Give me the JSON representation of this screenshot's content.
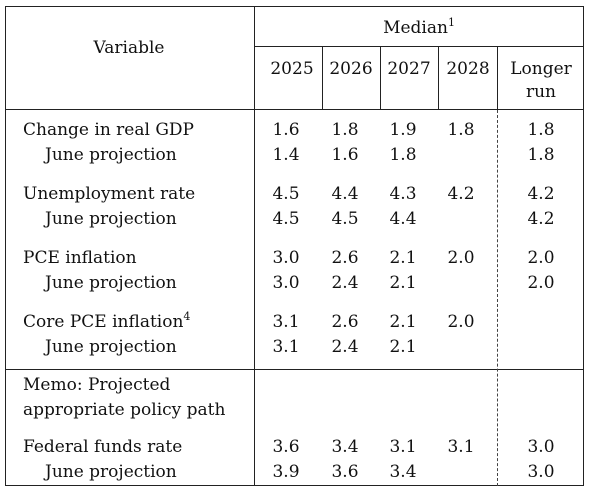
{
  "header": {
    "variable_label": "Variable",
    "median_label": "Median",
    "median_note": "1",
    "years": [
      "2025",
      "2026",
      "2027",
      "2028"
    ],
    "longer_run": [
      "Longer",
      "run"
    ]
  },
  "rows": [
    {
      "label": "Change in real GDP",
      "note": "",
      "values": [
        "1.6",
        "1.8",
        "1.9",
        "1.8",
        "1.8"
      ],
      "projection_label": "June projection",
      "projection": [
        "1.4",
        "1.6",
        "1.8",
        "",
        "1.8"
      ]
    },
    {
      "label": "Unemployment rate",
      "note": "",
      "values": [
        "4.5",
        "4.4",
        "4.3",
        "4.2",
        "4.2"
      ],
      "projection_label": "June projection",
      "projection": [
        "4.5",
        "4.5",
        "4.4",
        "",
        "4.2"
      ]
    },
    {
      "label": "PCE inflation",
      "note": "",
      "values": [
        "3.0",
        "2.6",
        "2.1",
        "2.0",
        "2.0"
      ],
      "projection_label": "June projection",
      "projection": [
        "3.0",
        "2.4",
        "2.1",
        "",
        "2.0"
      ]
    },
    {
      "label": "Core PCE inflation",
      "note": "4",
      "values": [
        "3.1",
        "2.6",
        "2.1",
        "2.0",
        ""
      ],
      "projection_label": "June projection",
      "projection": [
        "3.1",
        "2.4",
        "2.1",
        "",
        ""
      ]
    }
  ],
  "memo": {
    "line1": "Memo: Projected",
    "line2": "appropriate policy path"
  },
  "policy_rows": [
    {
      "label": "Federal funds rate",
      "note": "",
      "values": [
        "3.6",
        "3.4",
        "3.1",
        "3.1",
        "3.0"
      ],
      "projection_label": "June projection",
      "projection": [
        "3.9",
        "3.6",
        "3.4",
        "",
        "3.0"
      ]
    }
  ]
}
